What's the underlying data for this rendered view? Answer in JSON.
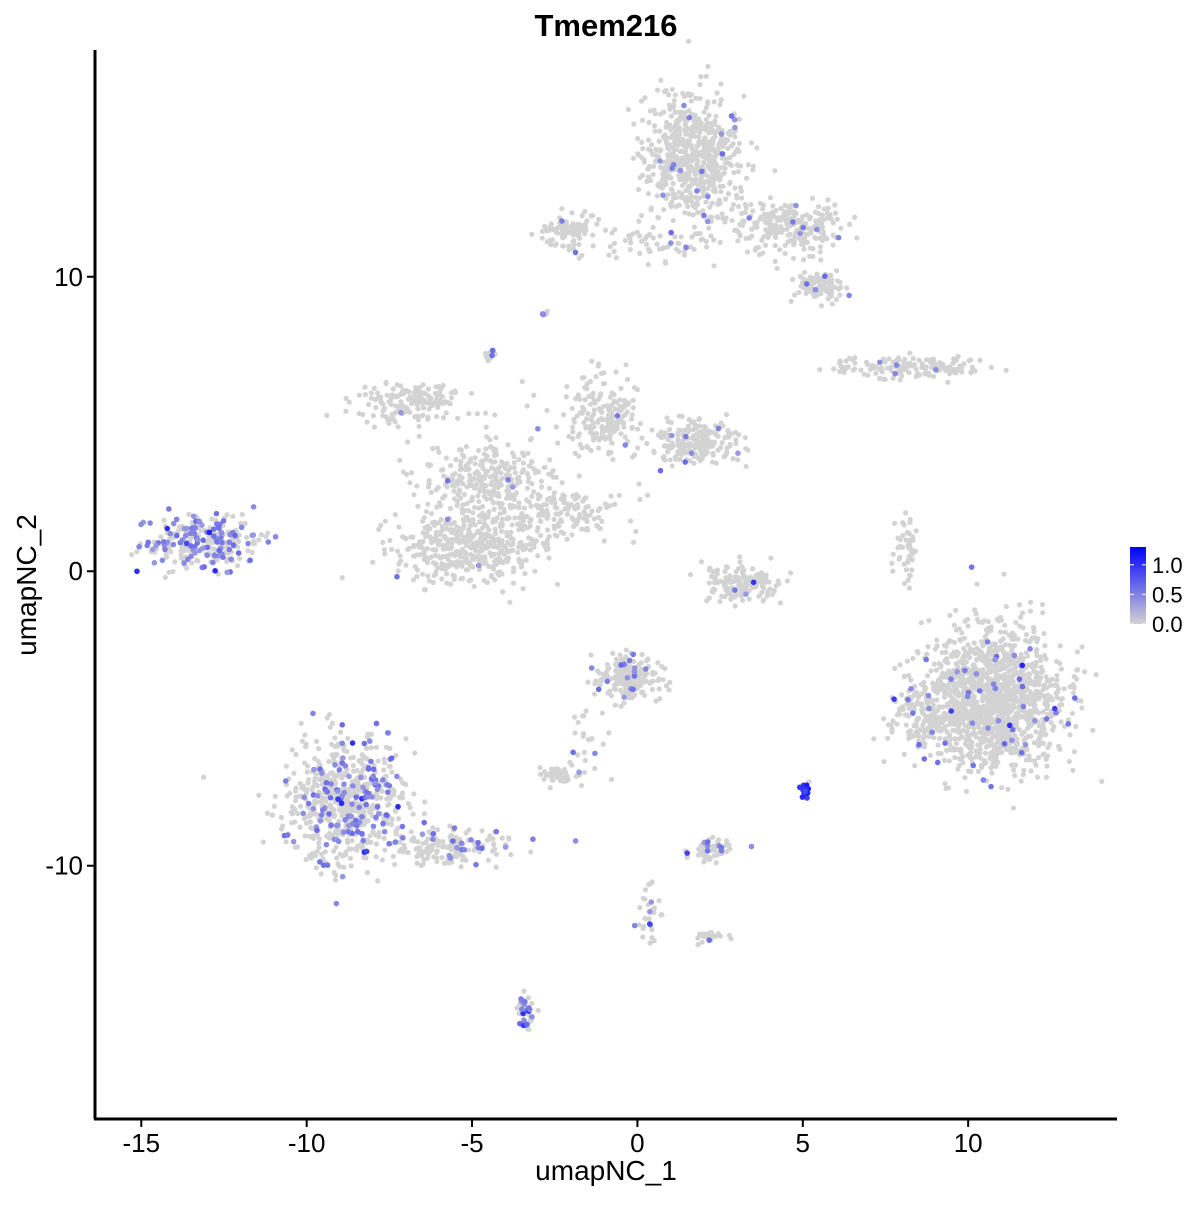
{
  "chart_data": {
    "type": "scatter",
    "title": "Tmem216",
    "xlabel": "umapNC_1",
    "ylabel": "umapNC_2",
    "xlim": [
      -16.4,
      14.5
    ],
    "ylim": [
      -18.6,
      17.7
    ],
    "xticks": [
      -15,
      -10,
      -5,
      0,
      5,
      10
    ],
    "xtick_labels": [
      "-15",
      "-10",
      "-5",
      "0",
      "5",
      "10"
    ],
    "yticks": [
      -10,
      0,
      10
    ],
    "ytick_labels": [
      "-10",
      "0",
      "10"
    ],
    "grid": false,
    "legend": {
      "placement": "right",
      "type": "colorbar",
      "range": [
        0.0,
        1.3
      ],
      "ticks": [
        0.0,
        0.5,
        1.0
      ],
      "tick_labels": [
        "0.0",
        "0.5",
        "1.0"
      ],
      "low_color": "#D3D3D3",
      "high_color": "#0000FF"
    },
    "clusters": [
      {
        "center": [
          1.7,
          14.0
        ],
        "spread": [
          1.0,
          1.4
        ],
        "n": 650,
        "expressing_fraction": 0.02
      },
      {
        "center": [
          4.6,
          11.7
        ],
        "spread": [
          1.1,
          0.6
        ],
        "n": 220,
        "expressing_fraction": 0.03
      },
      {
        "center": [
          5.5,
          9.7
        ],
        "spread": [
          0.5,
          0.35
        ],
        "n": 90,
        "expressing_fraction": 0.04
      },
      {
        "center": [
          -2.1,
          11.6
        ],
        "spread": [
          0.6,
          0.35
        ],
        "n": 90,
        "expressing_fraction": 0.02
      },
      {
        "center": [
          0.5,
          11.1
        ],
        "spread": [
          1.3,
          0.4
        ],
        "n": 60,
        "expressing_fraction": 0.03
      },
      {
        "center": [
          8.2,
          6.9
        ],
        "spread": [
          1.5,
          0.25
        ],
        "n": 140,
        "expressing_fraction": 0.04
      },
      {
        "center": [
          -6.9,
          5.8
        ],
        "spread": [
          1.0,
          0.45
        ],
        "n": 160,
        "expressing_fraction": 0.02
      },
      {
        "center": [
          -4.4,
          3.0
        ],
        "spread": [
          1.4,
          1.2
        ],
        "n": 350,
        "expressing_fraction": 0.01
      },
      {
        "center": [
          -5.1,
          0.8
        ],
        "spread": [
          1.5,
          0.8
        ],
        "n": 420,
        "expressing_fraction": 0.01
      },
      {
        "center": [
          -1.0,
          5.2
        ],
        "spread": [
          0.7,
          0.9
        ],
        "n": 180,
        "expressing_fraction": 0.02
      },
      {
        "center": [
          1.7,
          4.3
        ],
        "spread": [
          0.9,
          0.5
        ],
        "n": 200,
        "expressing_fraction": 0.02
      },
      {
        "center": [
          -2.2,
          2.0
        ],
        "spread": [
          1.2,
          0.6
        ],
        "n": 120,
        "expressing_fraction": 0.01
      },
      {
        "center": [
          -13.2,
          1.0
        ],
        "spread": [
          1.1,
          0.65
        ],
        "n": 260,
        "expressing_fraction": 0.4
      },
      {
        "center": [
          -8.8,
          -7.8
        ],
        "spread": [
          1.2,
          1.4
        ],
        "n": 650,
        "expressing_fraction": 0.18
      },
      {
        "center": [
          -5.6,
          -9.4
        ],
        "spread": [
          1.3,
          0.4
        ],
        "n": 150,
        "expressing_fraction": 0.15
      },
      {
        "center": [
          10.7,
          -4.4
        ],
        "spread": [
          1.4,
          1.6
        ],
        "n": 1400,
        "expressing_fraction": 0.03
      },
      {
        "center": [
          8.5,
          -5.0
        ],
        "spread": [
          0.6,
          0.8
        ],
        "n": 120,
        "expressing_fraction": 0.02
      },
      {
        "center": [
          -0.3,
          -3.6
        ],
        "spread": [
          0.6,
          0.55
        ],
        "n": 200,
        "expressing_fraction": 0.04
      },
      {
        "center": [
          3.2,
          -0.4
        ],
        "spread": [
          0.8,
          0.45
        ],
        "n": 160,
        "expressing_fraction": 0.02
      },
      {
        "center": [
          -2.4,
          -6.9
        ],
        "spread": [
          0.3,
          0.2
        ],
        "n": 45,
        "expressing_fraction": 0.05
      },
      {
        "center": [
          2.3,
          -9.5
        ],
        "spread": [
          0.4,
          0.25
        ],
        "n": 55,
        "expressing_fraction": 0.15
      },
      {
        "center": [
          -3.4,
          -15.0
        ],
        "spread": [
          0.15,
          0.35
        ],
        "n": 40,
        "expressing_fraction": 0.5
      },
      {
        "center": [
          5.1,
          -7.4
        ],
        "spread": [
          0.1,
          0.2
        ],
        "n": 14,
        "expressing_fraction": 0.9
      },
      {
        "center": [
          8.1,
          0.6
        ],
        "spread": [
          0.25,
          0.9
        ],
        "n": 45,
        "expressing_fraction": 0.0
      },
      {
        "center": [
          -4.5,
          7.4
        ],
        "spread": [
          0.15,
          0.15
        ],
        "n": 15,
        "expressing_fraction": 0.3
      },
      {
        "center": [
          -2.8,
          8.7
        ],
        "spread": [
          0.1,
          0.1
        ],
        "n": 8,
        "expressing_fraction": 0.3
      },
      {
        "center": [
          0.3,
          -11.5
        ],
        "spread": [
          0.3,
          0.8
        ],
        "n": 30,
        "expressing_fraction": 0.1
      },
      {
        "center": [
          2.2,
          -12.4
        ],
        "spread": [
          0.4,
          0.15
        ],
        "n": 25,
        "expressing_fraction": 0.1
      },
      {
        "center": [
          -1.5,
          -5.8
        ],
        "spread": [
          0.4,
          1.0
        ],
        "n": 25,
        "expressing_fraction": 0.1
      }
    ]
  }
}
